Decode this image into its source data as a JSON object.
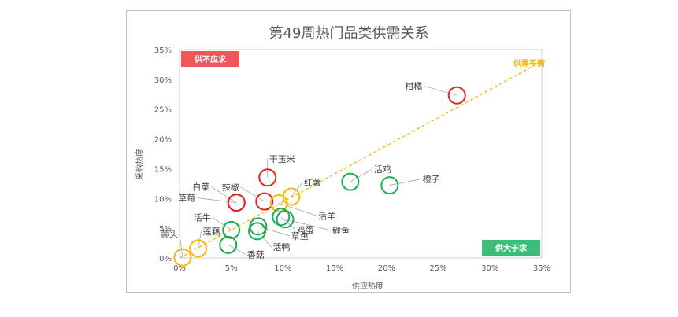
{
  "chart_data": {
    "type": "scatter",
    "title": "第49周热门品类供需关系",
    "xlabel": "供应热度",
    "ylabel": "采购热度",
    "xlim": [
      0,
      35
    ],
    "ylim": [
      0,
      35
    ],
    "x_ticks": [
      "0%",
      "5%",
      "10%",
      "15%",
      "20%",
      "25%",
      "30%",
      "35%"
    ],
    "y_ticks": [
      "0%",
      "5%",
      "10%",
      "15%",
      "20%",
      "25%",
      "30%",
      "35%"
    ],
    "grid": false,
    "balance_line": {
      "label": "供需平衡",
      "from": [
        0,
        0
      ],
      "to": [
        35,
        33
      ]
    },
    "zones": {
      "undersupply": {
        "label": "供不应求",
        "color": "#f0555a",
        "position": "top-left"
      },
      "oversupply": {
        "label": "供大于求",
        "color": "#3dbc7a",
        "position": "bottom-right"
      }
    },
    "colors": {
      "red": "#e02424",
      "green": "#1faa55",
      "yellow": "#f5b70a",
      "balance_line": "#f5b70a"
    },
    "points": [
      {
        "name": "柑橘",
        "x": 26.8,
        "y": 27.3,
        "status": "red"
      },
      {
        "name": "干玉米",
        "x": 8.5,
        "y": 13.5,
        "status": "red"
      },
      {
        "name": "辣椒",
        "x": 8.2,
        "y": 9.5,
        "status": "red"
      },
      {
        "name": "白菜",
        "x": 5.5,
        "y": 9.3,
        "status": "red"
      },
      {
        "name": "草莓",
        "x": 5.5,
        "y": 9.3,
        "status": "red"
      },
      {
        "name": "红薯",
        "x": 10.8,
        "y": 10.3,
        "status": "yellow"
      },
      {
        "name": "活羊",
        "x": 9.6,
        "y": 9.2,
        "status": "yellow"
      },
      {
        "name": "蒜头",
        "x": 0.3,
        "y": 0.1,
        "status": "yellow"
      },
      {
        "name": "莲藕",
        "x": 1.8,
        "y": 1.6,
        "status": "yellow"
      },
      {
        "name": "活牛",
        "x": 5.0,
        "y": 4.7,
        "status": "green"
      },
      {
        "name": "活鸡",
        "x": 16.5,
        "y": 12.8,
        "status": "green"
      },
      {
        "name": "橙子",
        "x": 20.3,
        "y": 12.2,
        "status": "green"
      },
      {
        "name": "鸡蛋",
        "x": 9.8,
        "y": 6.9,
        "status": "green"
      },
      {
        "name": "鲤鱼",
        "x": 10.2,
        "y": 6.5,
        "status": "green"
      },
      {
        "name": "草鱼",
        "x": 7.6,
        "y": 5.3,
        "status": "green"
      },
      {
        "name": "活鸭",
        "x": 7.5,
        "y": 4.5,
        "status": "green"
      },
      {
        "name": "香菇",
        "x": 4.7,
        "y": 2.2,
        "status": "green"
      }
    ]
  }
}
